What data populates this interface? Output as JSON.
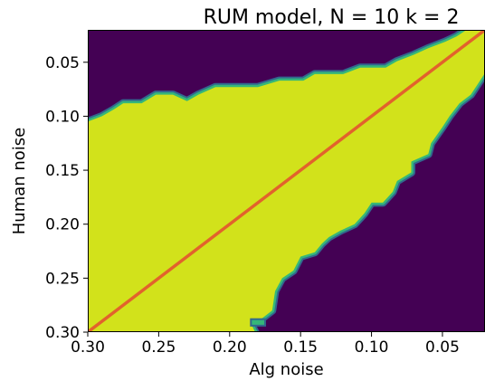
{
  "chart_data": {
    "type": "heatmap",
    "title": "RUM model, N = 10 k = 2",
    "xlabel": "Alg noise",
    "ylabel": "Human noise",
    "xlim": [
      0.3,
      0.02
    ],
    "ylim": [
      0.3,
      0.02
    ],
    "x_ticks": [
      {
        "value": 0.3,
        "label": "0.30"
      },
      {
        "value": 0.25,
        "label": "0.25"
      },
      {
        "value": 0.2,
        "label": "0.20"
      },
      {
        "value": 0.15,
        "label": "0.15"
      },
      {
        "value": 0.1,
        "label": "0.10"
      },
      {
        "value": 0.05,
        "label": "0.05"
      }
    ],
    "y_ticks": [
      {
        "value": 0.05,
        "label": "0.05"
      },
      {
        "value": 0.1,
        "label": "0.10"
      },
      {
        "value": 0.15,
        "label": "0.15"
      },
      {
        "value": 0.2,
        "label": "0.20"
      },
      {
        "value": 0.25,
        "label": "0.25"
      },
      {
        "value": 0.3,
        "label": "0.30"
      }
    ],
    "colors": {
      "low": "#440154",
      "edge_low": "#31688e",
      "edge_high": "#35b779",
      "high": "#d2e21b",
      "line": "#e2622c"
    },
    "high_region_upper_boundary": [
      [
        0.3,
        0.105
      ],
      [
        0.29,
        0.1
      ],
      [
        0.282,
        0.094
      ],
      [
        0.275,
        0.088
      ],
      [
        0.262,
        0.088
      ],
      [
        0.252,
        0.08
      ],
      [
        0.24,
        0.08
      ],
      [
        0.23,
        0.086
      ],
      [
        0.222,
        0.08
      ],
      [
        0.21,
        0.073
      ],
      [
        0.18,
        0.073
      ],
      [
        0.165,
        0.067
      ],
      [
        0.148,
        0.067
      ],
      [
        0.14,
        0.061
      ],
      [
        0.12,
        0.061
      ],
      [
        0.108,
        0.055
      ],
      [
        0.09,
        0.055
      ],
      [
        0.082,
        0.049
      ],
      [
        0.07,
        0.043
      ],
      [
        0.06,
        0.037
      ],
      [
        0.048,
        0.031
      ],
      [
        0.04,
        0.026
      ],
      [
        0.033,
        0.02
      ],
      [
        0.02,
        0.02
      ]
    ],
    "high_region_lower_boundary": [
      [
        0.02,
        0.06
      ],
      [
        0.03,
        0.08
      ],
      [
        0.038,
        0.088
      ],
      [
        0.045,
        0.1
      ],
      [
        0.05,
        0.11
      ],
      [
        0.058,
        0.125
      ],
      [
        0.06,
        0.135
      ],
      [
        0.072,
        0.142
      ],
      [
        0.072,
        0.152
      ],
      [
        0.082,
        0.16
      ],
      [
        0.085,
        0.17
      ],
      [
        0.092,
        0.18
      ],
      [
        0.1,
        0.18
      ],
      [
        0.105,
        0.19
      ],
      [
        0.112,
        0.2
      ],
      [
        0.122,
        0.206
      ],
      [
        0.13,
        0.212
      ],
      [
        0.135,
        0.218
      ],
      [
        0.14,
        0.226
      ],
      [
        0.15,
        0.23
      ],
      [
        0.155,
        0.243
      ],
      [
        0.163,
        0.25
      ],
      [
        0.168,
        0.262
      ],
      [
        0.17,
        0.28
      ],
      [
        0.178,
        0.288
      ],
      [
        0.185,
        0.292
      ],
      [
        0.182,
        0.3
      ],
      [
        0.3,
        0.3
      ]
    ],
    "islands": [
      {
        "x": 0.18,
        "y": 0.291,
        "w": 0.01,
        "h": 0.006
      }
    ],
    "diagonal": [
      [
        0.3,
        0.3
      ],
      [
        0.02,
        0.02
      ]
    ],
    "grid": false,
    "legend": "none"
  }
}
